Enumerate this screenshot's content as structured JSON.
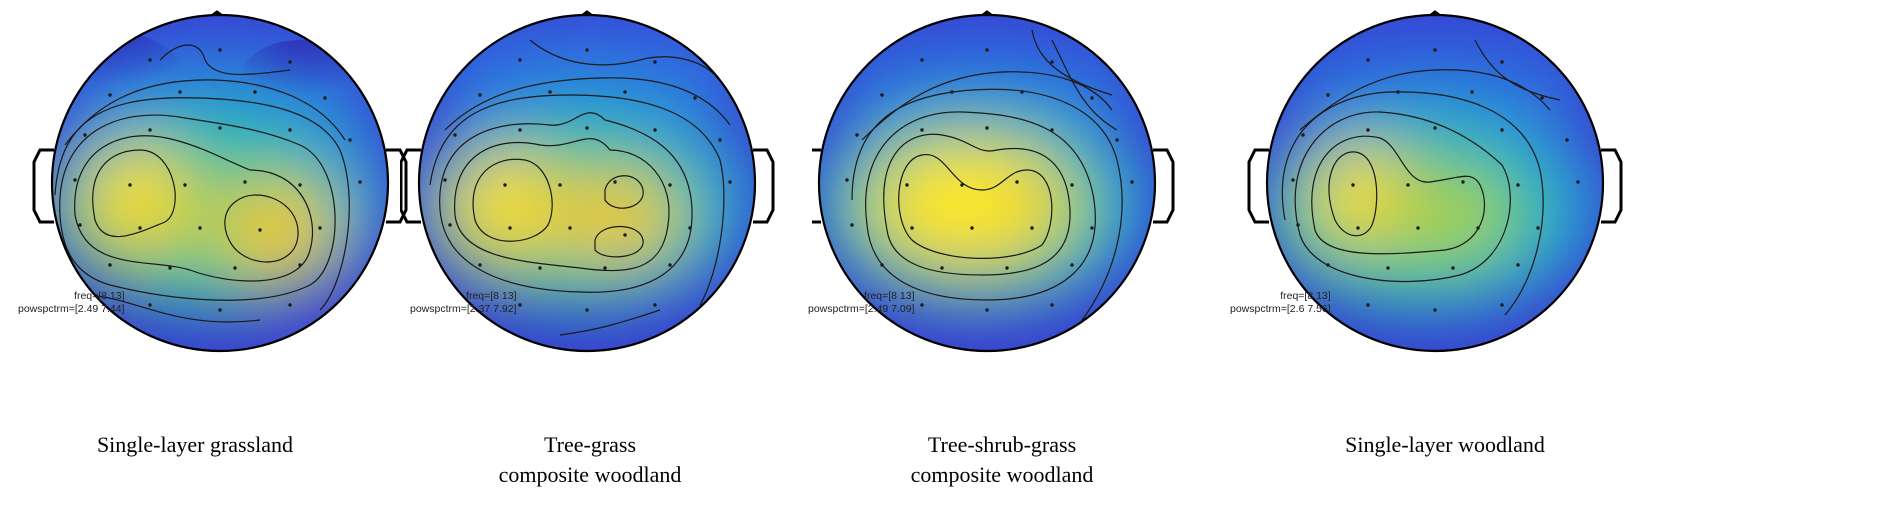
{
  "colormap": {
    "low": "#3a2ec2",
    "mid": "#22bfa5",
    "high": "#ffec25"
  },
  "panels": [
    {
      "freq_label": "freq=[8 13]",
      "pow_label": "powspctrm=[2.49 7.44]",
      "caption_line1": "Single-layer grassland",
      "caption_line2": ""
    },
    {
      "freq_label": "freq=[8 13]",
      "pow_label": "powspctrm=[2.37 7.92]",
      "caption_line1": "Tree-grass",
      "caption_line2": "composite woodland"
    },
    {
      "freq_label": "freq=[8 13]",
      "pow_label": "powspctrm=[2.49 7.09]",
      "caption_line1": "Tree-shrub-grass",
      "caption_line2": "composite woodland"
    },
    {
      "freq_label": "freq=[8 13]",
      "pow_label": "powspctrm=[2.6 7.56]",
      "caption_line1": "Single-layer woodland",
      "caption_line2": ""
    }
  ]
}
